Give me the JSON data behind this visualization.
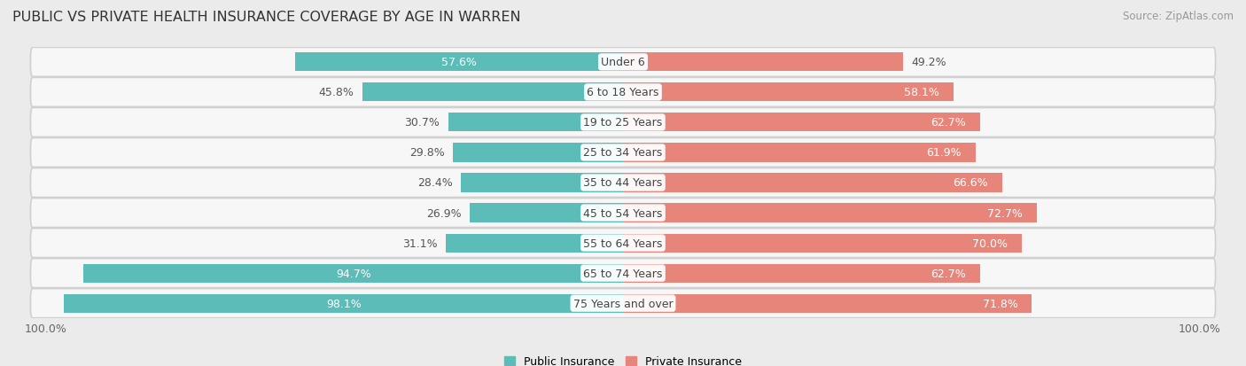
{
  "title": "PUBLIC VS PRIVATE HEALTH INSURANCE COVERAGE BY AGE IN WARREN",
  "source": "Source: ZipAtlas.com",
  "categories": [
    "Under 6",
    "6 to 18 Years",
    "19 to 25 Years",
    "25 to 34 Years",
    "35 to 44 Years",
    "45 to 54 Years",
    "55 to 64 Years",
    "65 to 74 Years",
    "75 Years and over"
  ],
  "public_values": [
    57.6,
    45.8,
    30.7,
    29.8,
    28.4,
    26.9,
    31.1,
    94.7,
    98.1
  ],
  "private_values": [
    49.2,
    58.1,
    62.7,
    61.9,
    66.6,
    72.7,
    70.0,
    62.7,
    71.8
  ],
  "public_color": "#5bbcb8",
  "private_color": "#e8857a",
  "background_color": "#ebebeb",
  "row_bg_color": "#f7f7f7",
  "row_border_color": "#d0d0d0",
  "title_fontsize": 11.5,
  "source_fontsize": 8.5,
  "label_fontsize": 9,
  "bar_height": 0.62,
  "legend_label_public": "Public Insurance",
  "legend_label_private": "Private Insurance",
  "xlim": 105,
  "pub_inside_threshold": 50,
  "priv_inside_threshold": 55
}
